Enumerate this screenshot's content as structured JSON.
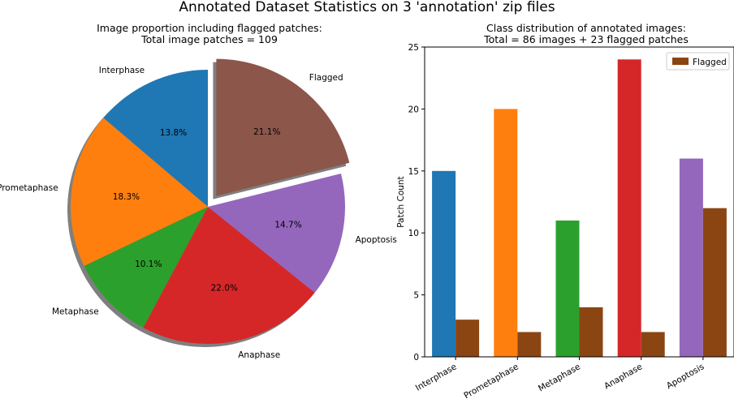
{
  "figure_title": "Annotated Dataset Statistics on 3 'annotation' zip files",
  "chart_data": [
    {
      "type": "pie",
      "title_line1": "Image proportion including flagged patches:",
      "title_line2": "Total image patches = 109",
      "slices": [
        {
          "label": "Interphase",
          "value": 15,
          "pct": "13.8%",
          "color": "#1f77b4",
          "explode": false
        },
        {
          "label": "Prometaphase",
          "value": 20,
          "pct": "18.3%",
          "color": "#ff7f0e",
          "explode": false
        },
        {
          "label": "Metaphase",
          "value": 11,
          "pct": "10.1%",
          "color": "#2ca02c",
          "explode": false
        },
        {
          "label": "Anaphase",
          "value": 24,
          "pct": "22.0%",
          "color": "#d62728",
          "explode": false
        },
        {
          "label": "Apoptosis",
          "value": 16,
          "pct": "14.7%",
          "color": "#9467bd",
          "explode": false
        },
        {
          "label": "Flagged",
          "value": 23,
          "pct": "21.1%",
          "color": "#8c564b",
          "explode": true
        }
      ],
      "start_angle_deg": 90,
      "shadow": true
    },
    {
      "type": "bar",
      "title_line1": "Class distribution of annotated images:",
      "title_line2": "Total = 86 images + 23 flagged patches",
      "ylabel": "Patch Count",
      "ylim": [
        0,
        25
      ],
      "yticks": [
        "0",
        "5",
        "10",
        "15",
        "20",
        "25"
      ],
      "categories": [
        "Interphase",
        "Prometaphase",
        "Metaphase",
        "Anaphase",
        "Apoptosis"
      ],
      "series": [
        {
          "values": [
            15,
            20,
            11,
            24,
            16
          ],
          "colors": [
            "#1f77b4",
            "#ff7f0e",
            "#2ca02c",
            "#d62728",
            "#9467bd"
          ]
        },
        {
          "name": "Flagged",
          "values": [
            3,
            2,
            4,
            2,
            12
          ],
          "color": "#8b4513"
        }
      ],
      "legend": {
        "position": "top-right",
        "label": "Flagged"
      }
    }
  ]
}
